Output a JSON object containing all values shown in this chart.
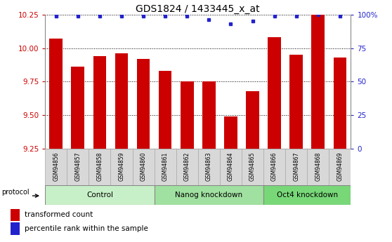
{
  "title": "GDS1824 / 1433445_x_at",
  "samples": [
    "GSM94856",
    "GSM94857",
    "GSM94858",
    "GSM94859",
    "GSM94860",
    "GSM94861",
    "GSM94862",
    "GSM94863",
    "GSM94864",
    "GSM94865",
    "GSM94866",
    "GSM94867",
    "GSM94868",
    "GSM94869"
  ],
  "red_values": [
    10.07,
    9.86,
    9.94,
    9.96,
    9.92,
    9.83,
    9.75,
    9.75,
    9.49,
    9.68,
    10.08,
    9.95,
    10.25,
    9.93
  ],
  "blue_values": [
    99,
    99,
    99,
    99,
    99,
    99,
    99,
    96,
    93,
    95,
    99,
    99,
    100,
    99
  ],
  "ylim_left": [
    9.25,
    10.25
  ],
  "ylim_right": [
    0,
    100
  ],
  "yticks_left": [
    9.25,
    9.5,
    9.75,
    10.0,
    10.25
  ],
  "yticks_right": [
    0,
    25,
    50,
    75,
    100
  ],
  "groups": [
    {
      "label": "Control",
      "start": 0,
      "end": 5
    },
    {
      "label": "Nanog knockdown",
      "start": 5,
      "end": 10
    },
    {
      "label": "Oct4 knockdown",
      "start": 10,
      "end": 14
    }
  ],
  "group_colors": [
    "#c8f0c8",
    "#a0e0a0",
    "#78d878"
  ],
  "bar_color": "#cc0000",
  "blue_color": "#2222cc",
  "title_fontsize": 10,
  "axis_color_left": "#cc0000",
  "axis_color_right": "#2222cc",
  "tick_fontsize": 7.5,
  "sample_fontsize": 5.5,
  "group_fontsize": 7.5,
  "legend_fontsize": 7.5
}
